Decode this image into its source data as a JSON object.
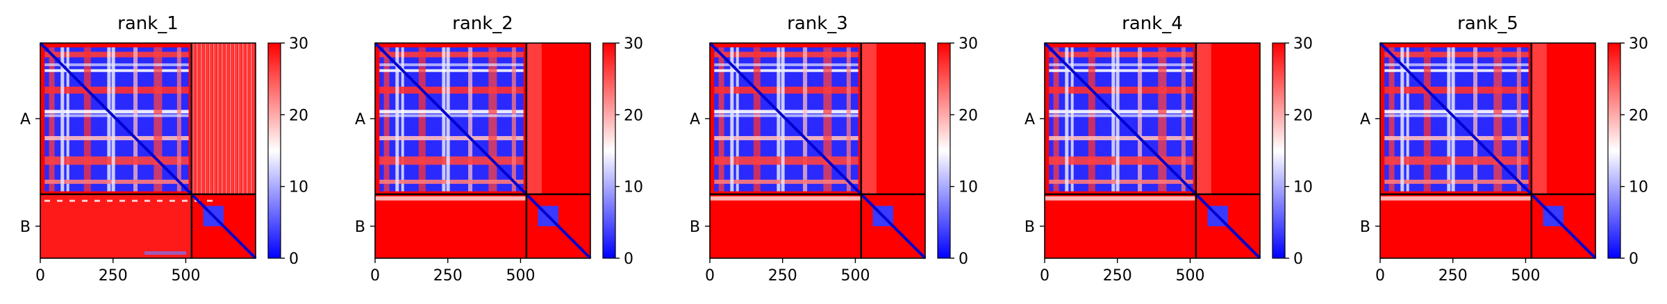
{
  "chart_data": [
    {
      "type": "heatmap",
      "title": "rank_1",
      "chain_labels": [
        "A",
        "B"
      ],
      "x_ticks": [
        "0",
        "250",
        "500"
      ],
      "xlim": [
        0,
        740
      ],
      "ylim": [
        740,
        0
      ],
      "chain_break": 520,
      "colorbar": {
        "ticks": [
          "0",
          "10",
          "20",
          "30"
        ],
        "range": [
          0,
          30
        ],
        "colors": [
          "#0000ff",
          "#ffffff",
          "#ff0000"
        ]
      }
    },
    {
      "type": "heatmap",
      "title": "rank_2",
      "chain_labels": [
        "A",
        "B"
      ],
      "x_ticks": [
        "0",
        "250",
        "500"
      ],
      "xlim": [
        0,
        740
      ],
      "ylim": [
        740,
        0
      ],
      "chain_break": 520,
      "colorbar": {
        "ticks": [
          "0",
          "10",
          "20",
          "30"
        ],
        "range": [
          0,
          30
        ],
        "colors": [
          "#0000ff",
          "#ffffff",
          "#ff0000"
        ]
      }
    },
    {
      "type": "heatmap",
      "title": "rank_3",
      "chain_labels": [
        "A",
        "B"
      ],
      "x_ticks": [
        "0",
        "250",
        "500"
      ],
      "xlim": [
        0,
        740
      ],
      "ylim": [
        740,
        0
      ],
      "chain_break": 520,
      "colorbar": {
        "ticks": [
          "0",
          "10",
          "20",
          "30"
        ],
        "range": [
          0,
          30
        ],
        "colors": [
          "#0000ff",
          "#ffffff",
          "#ff0000"
        ]
      }
    },
    {
      "type": "heatmap",
      "title": "rank_4",
      "chain_labels": [
        "A",
        "B"
      ],
      "x_ticks": [
        "0",
        "250",
        "500"
      ],
      "xlim": [
        0,
        740
      ],
      "ylim": [
        740,
        0
      ],
      "chain_break": 520,
      "colorbar": {
        "ticks": [
          "0",
          "10",
          "20",
          "30"
        ],
        "range": [
          0,
          30
        ],
        "colors": [
          "#0000ff",
          "#ffffff",
          "#ff0000"
        ]
      }
    },
    {
      "type": "heatmap",
      "title": "rank_5",
      "chain_labels": [
        "A",
        "B"
      ],
      "x_ticks": [
        "0",
        "250",
        "500"
      ],
      "xlim": [
        0,
        740
      ],
      "ylim": [
        740,
        0
      ],
      "chain_break": 520,
      "colorbar": {
        "ticks": [
          "0",
          "10",
          "20",
          "30"
        ],
        "range": [
          0,
          30
        ],
        "colors": [
          "#0000ff",
          "#ffffff",
          "#ff0000"
        ]
      }
    }
  ]
}
